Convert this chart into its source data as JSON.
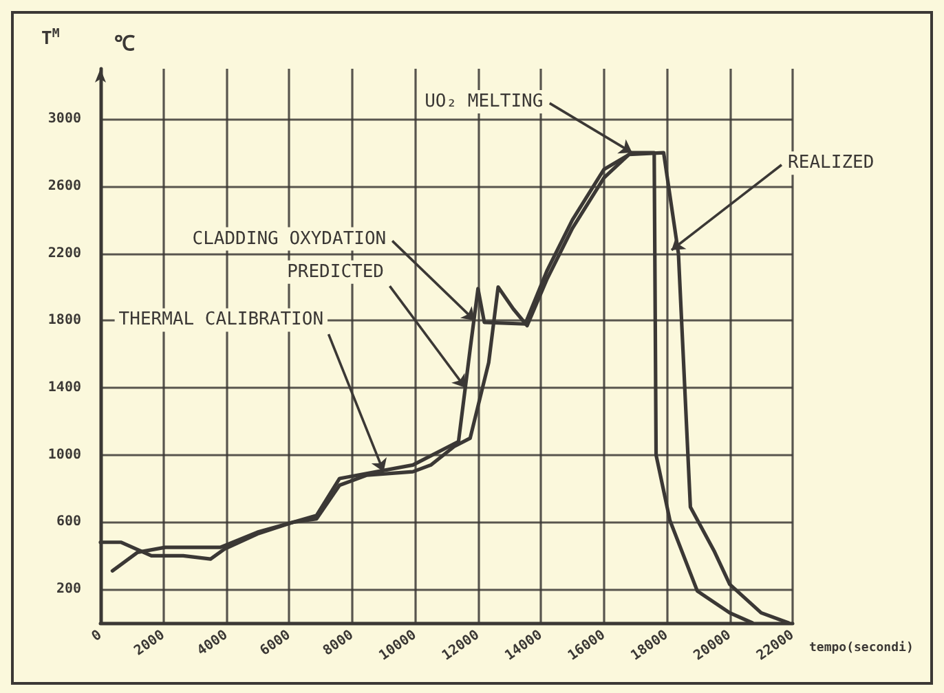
{
  "chart_data": {
    "type": "line",
    "ylabel": "T$^{M}$",
    "xlabel": "tempo(secondi)",
    "x": [
      0,
      660,
      1620,
      2630,
      3500,
      3940,
      4990,
      6130,
      6870,
      7600,
      8470,
      9930,
      10500,
      11240,
      11750,
      12340,
      12640,
      13120,
      13560,
      14200,
      15000,
      16000,
      16800,
      17900,
      18370,
      18750,
      19500,
      20000,
      21000,
      21870
    ],
    "series": [
      {
        "color": "#3b3835",
        "values": [
          480,
          480,
          400,
          400,
          380,
          440,
          530,
          600,
          620,
          820,
          880,
          900,
          940,
          1050,
          1100,
          1550,
          2000,
          1870,
          1770,
          2050,
          2350,
          2650,
          2790,
          2800,
          2200,
          690,
          430,
          230,
          60,
          0
        ]
      },
      {
        "color": "#3b3835",
        "x": [
          380,
          1180,
          2060,
          3810,
          4990,
          6130,
          6870,
          7600,
          7900,
          9930,
          11380,
          11750,
          12000,
          12200,
          13500,
          14200,
          15000,
          16000,
          16900,
          17600,
          17660,
          18100,
          18970,
          20000,
          20720
        ],
        "values": [
          310,
          420,
          450,
          450,
          540,
          600,
          640,
          860,
          870,
          940,
          1080,
          1630,
          1990,
          1790,
          1780,
          2100,
          2400,
          2700,
          2800,
          2800,
          1000,
          610,
          190,
          60,
          0
        ]
      }
    ],
    "annotations": [
      "℃",
      {
        "text": "UO₂ MELTING",
        "x": 16900,
        "y": 2800
      },
      {
        "text": "REALIZED",
        "x": 18150,
        "y": 2220
      },
      {
        "text": "CLADDING OXYDATION",
        "x": 11900,
        "y": 1800
      },
      {
        "text": "PREDICTED",
        "x": 11600,
        "y": 1400
      },
      {
        "text": "THERMAL CALIBRATION",
        "x": 9000,
        "y": 900
      }
    ],
    "xlim": [
      0,
      22000
    ],
    "xticks": [
      0,
      2000,
      4000,
      6000,
      8000,
      10000,
      12000,
      14000,
      16000,
      18000,
      20000,
      22000
    ],
    "ylim": [
      0,
      3300
    ],
    "yticks": [
      200,
      600,
      1000,
      1400,
      1800,
      2200,
      2600,
      3000
    ],
    "grid": true,
    "marker": "none",
    "line_style": "solid"
  }
}
